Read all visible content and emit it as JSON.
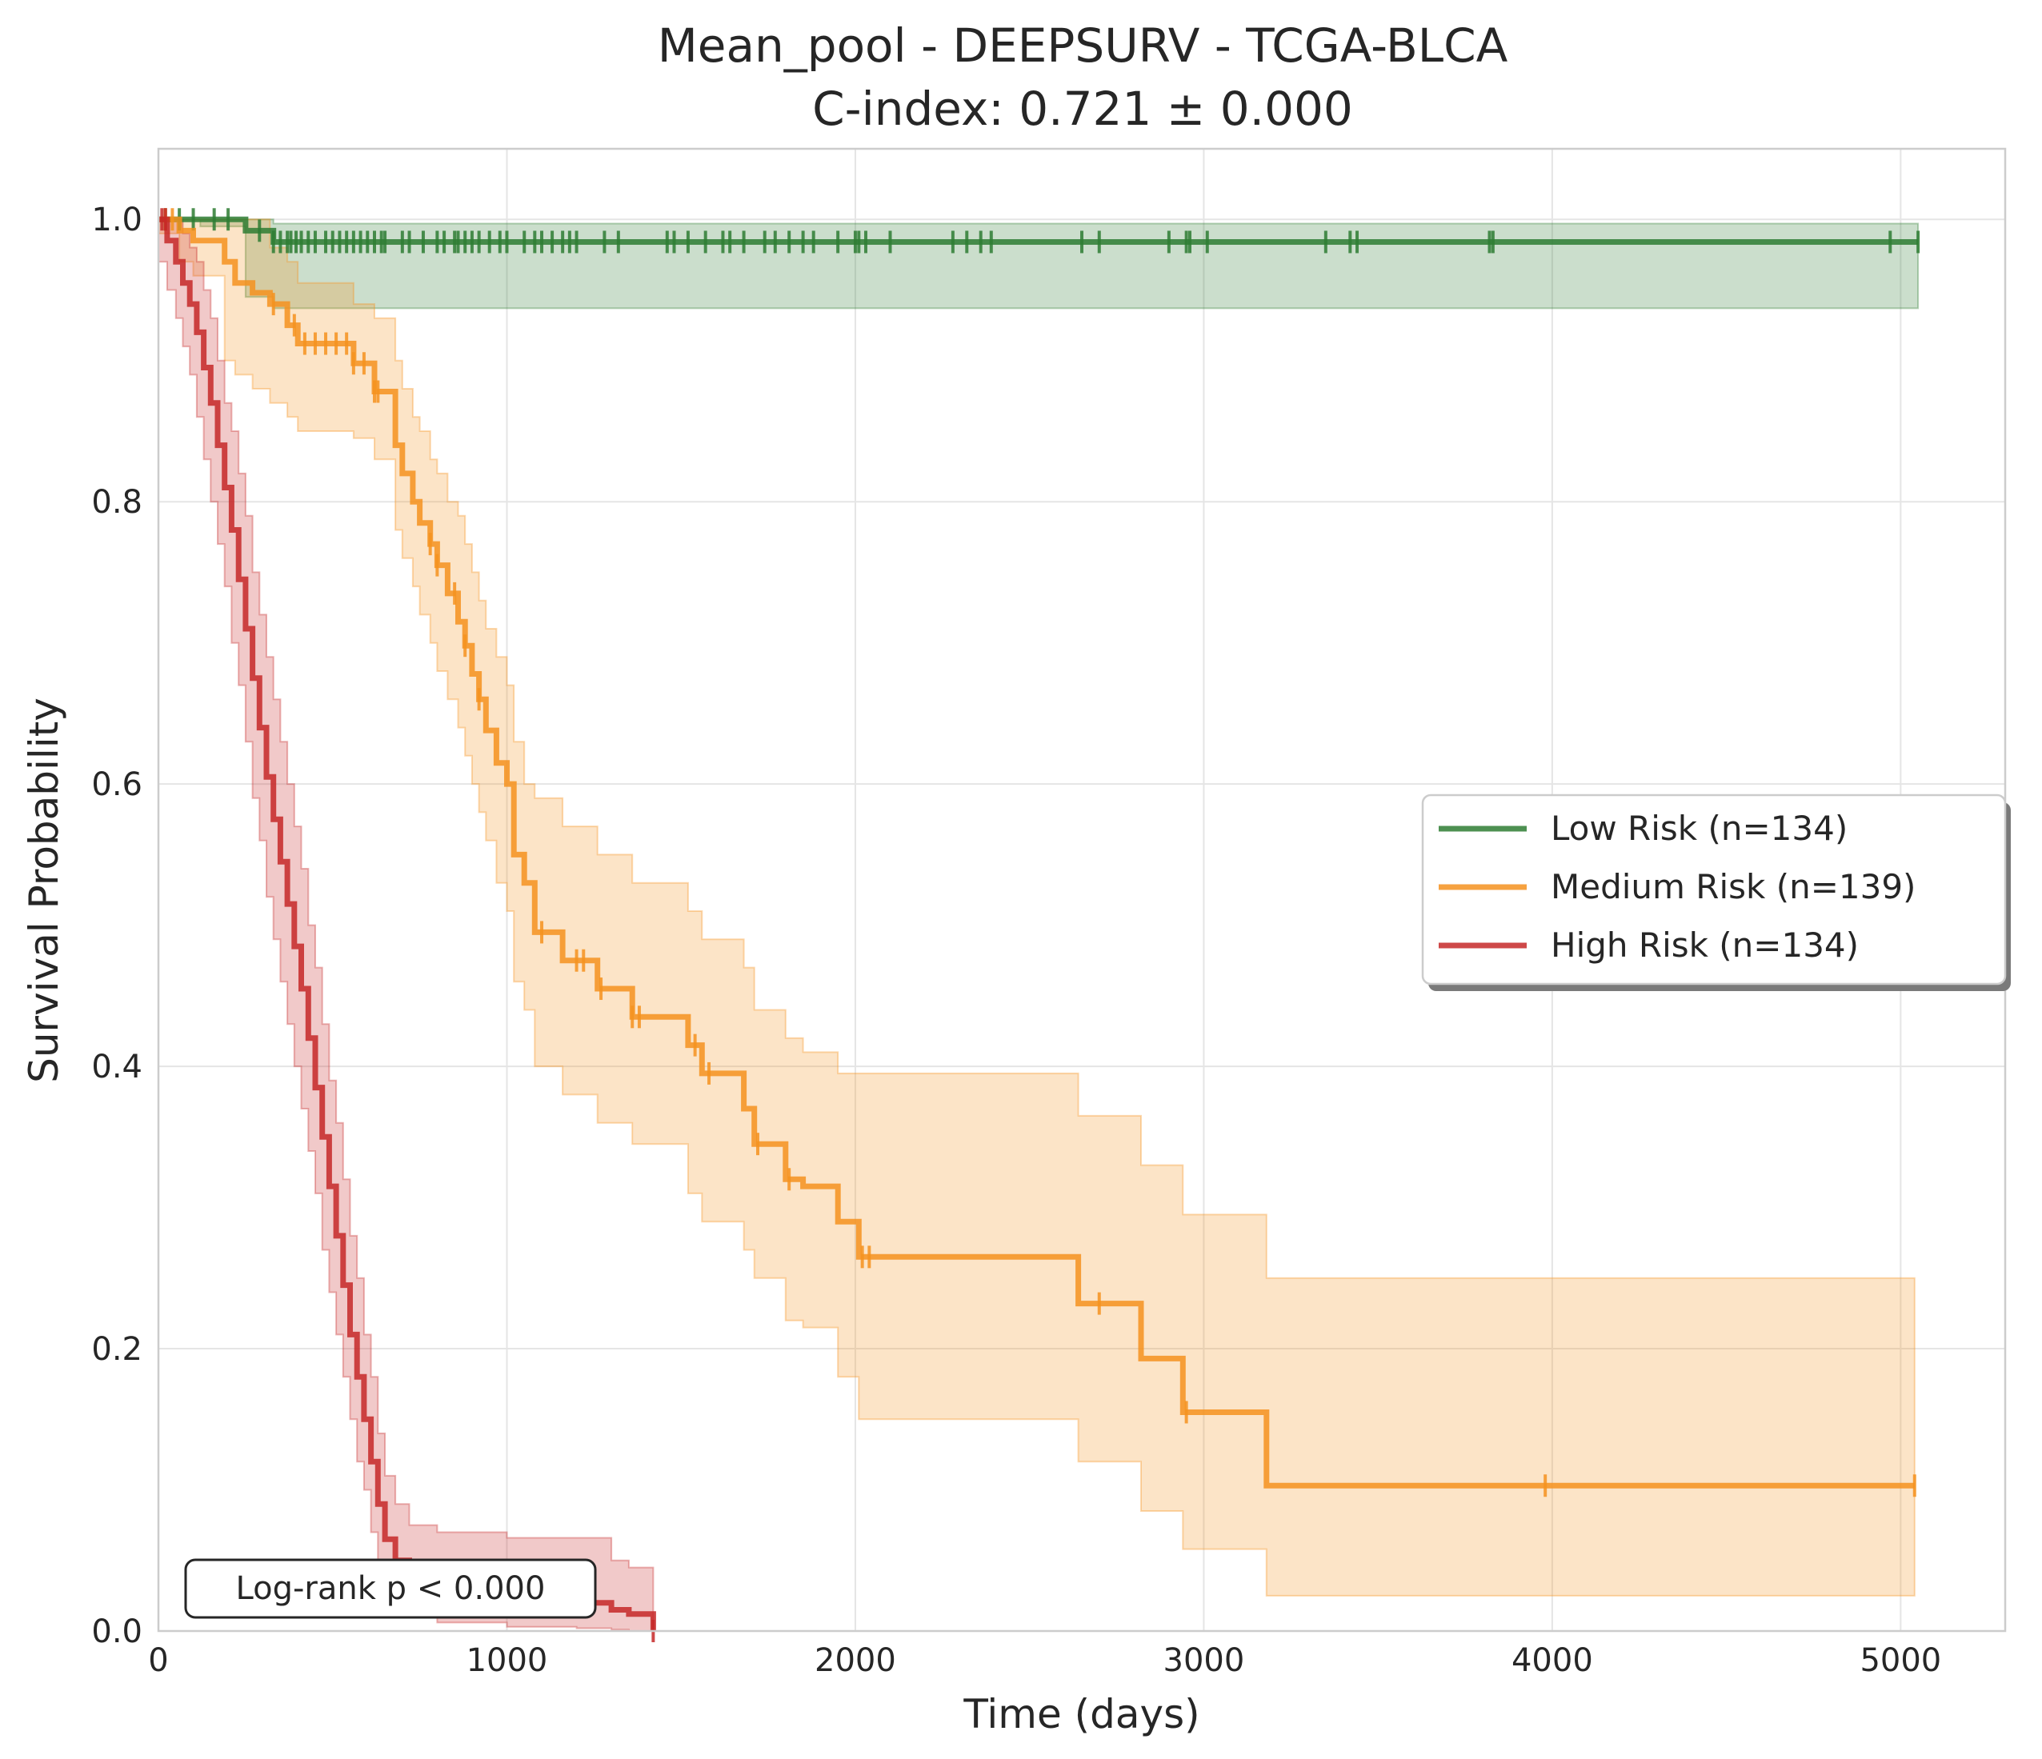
{
  "chart_data": {
    "type": "line",
    "subtype": "kaplan-meier",
    "title": "Mean_pool - DEEPSURV - TCGA-BLCA",
    "subtitle": "C-index: 0.721 ± 0.000",
    "xlabel": "Time (days)",
    "ylabel": "Survival Probability",
    "xlim": [
      0,
      5300
    ],
    "ylim": [
      0,
      1.05
    ],
    "xticks": [
      0,
      1000,
      2000,
      3000,
      4000,
      5000
    ],
    "xtick_labels": [
      "0",
      "1000",
      "2000",
      "3000",
      "4000",
      "5000"
    ],
    "yticks": [
      0,
      0.2,
      0.4,
      0.6,
      0.8,
      1.0
    ],
    "ytick_labels": [
      "0.0",
      "0.2",
      "0.4",
      "0.6",
      "0.8",
      "1.0"
    ],
    "grid": true,
    "legend_position": "center-right",
    "annotation": "Log-rank p < 0.000",
    "series": [
      {
        "name": "Low Risk (n=134)",
        "color": "#2e7d32",
        "x": [
          0,
          120,
          250,
          330,
          5050
        ],
        "y": [
          1.0,
          1.0,
          0.992,
          0.984,
          0.984
        ],
        "ci_lower": [
          1.0,
          0.995,
          0.945,
          0.937,
          0.937
        ],
        "ci_upper": [
          1.0,
          1.0,
          1.0,
          0.997,
          0.997
        ],
        "censors": [
          20,
          60,
          100,
          160,
          200,
          290,
          330,
          350,
          370,
          380,
          395,
          410,
          430,
          450,
          480,
          500,
          520,
          540,
          560,
          580,
          600,
          620,
          640,
          650,
          700,
          720,
          760,
          800,
          820,
          850,
          860,
          880,
          900,
          920,
          950,
          980,
          1000,
          1050,
          1080,
          1100,
          1130,
          1160,
          1180,
          1200,
          1280,
          1320,
          1460,
          1480,
          1520,
          1570,
          1620,
          1640,
          1680,
          1740,
          1770,
          1810,
          1850,
          1880,
          1950,
          2000,
          2010,
          2030,
          2100,
          2280,
          2320,
          2360,
          2390,
          2650,
          2700,
          2900,
          2950,
          2960,
          3010,
          3350,
          3420,
          3440,
          3820,
          3830,
          4970,
          5050
        ]
      },
      {
        "name": "Medium Risk (n=139)",
        "color": "#f5921e",
        "x": [
          0,
          60,
          100,
          190,
          220,
          270,
          320,
          370,
          400,
          560,
          620,
          680,
          700,
          730,
          750,
          780,
          800,
          830,
          860,
          880,
          900,
          920,
          940,
          970,
          1000,
          1020,
          1050,
          1080,
          1160,
          1260,
          1360,
          1520,
          1560,
          1680,
          1710,
          1800,
          1850,
          1950,
          2010,
          2640,
          2820,
          2940,
          3180,
          5040
        ],
        "y": [
          1.0,
          0.992,
          0.985,
          0.97,
          0.955,
          0.948,
          0.94,
          0.925,
          0.912,
          0.898,
          0.878,
          0.84,
          0.82,
          0.8,
          0.785,
          0.77,
          0.755,
          0.735,
          0.715,
          0.698,
          0.678,
          0.66,
          0.638,
          0.615,
          0.6,
          0.55,
          0.53,
          0.495,
          0.475,
          0.455,
          0.435,
          0.415,
          0.395,
          0.37,
          0.345,
          0.32,
          0.315,
          0.29,
          0.265,
          0.232,
          0.193,
          0.155,
          0.103,
          0.103
        ],
        "ci_lower": [
          0.99,
          0.97,
          0.96,
          0.9,
          0.89,
          0.88,
          0.87,
          0.86,
          0.85,
          0.845,
          0.83,
          0.78,
          0.76,
          0.74,
          0.72,
          0.7,
          0.68,
          0.66,
          0.64,
          0.62,
          0.6,
          0.58,
          0.56,
          0.53,
          0.51,
          0.46,
          0.44,
          0.4,
          0.38,
          0.36,
          0.345,
          0.31,
          0.29,
          0.27,
          0.25,
          0.22,
          0.215,
          0.18,
          0.15,
          0.12,
          0.085,
          0.058,
          0.025,
          0.025
        ],
        "ci_upper": [
          1.0,
          1.0,
          1.0,
          1.0,
          1.0,
          1.0,
          0.98,
          0.97,
          0.955,
          0.94,
          0.93,
          0.9,
          0.88,
          0.86,
          0.85,
          0.83,
          0.82,
          0.8,
          0.79,
          0.77,
          0.75,
          0.73,
          0.71,
          0.69,
          0.67,
          0.63,
          0.6,
          0.59,
          0.57,
          0.55,
          0.53,
          0.51,
          0.49,
          0.47,
          0.44,
          0.42,
          0.41,
          0.395,
          0.395,
          0.365,
          0.33,
          0.295,
          0.25,
          0.25
        ],
        "censors": [
          20,
          40,
          330,
          390,
          420,
          450,
          480,
          510,
          540,
          560,
          590,
          620,
          630,
          780,
          800,
          850,
          880,
          920,
          1100,
          1200,
          1220,
          1270,
          1360,
          1380,
          1540,
          1580,
          1720,
          1810,
          2020,
          2040,
          2700,
          2950,
          3980,
          5040
        ]
      },
      {
        "name": "High Risk (n=134)",
        "color": "#c62828",
        "x": [
          0,
          25,
          50,
          70,
          90,
          110,
          130,
          150,
          170,
          190,
          210,
          230,
          250,
          270,
          290,
          310,
          330,
          350,
          370,
          390,
          410,
          430,
          450,
          470,
          490,
          510,
          530,
          550,
          570,
          590,
          610,
          630,
          650,
          680,
          720,
          800,
          1000,
          1200,
          1300,
          1350,
          1420
        ],
        "y": [
          1.0,
          0.985,
          0.97,
          0.955,
          0.94,
          0.92,
          0.895,
          0.87,
          0.84,
          0.81,
          0.78,
          0.745,
          0.71,
          0.675,
          0.64,
          0.605,
          0.575,
          0.545,
          0.515,
          0.485,
          0.455,
          0.42,
          0.385,
          0.35,
          0.315,
          0.28,
          0.245,
          0.21,
          0.18,
          0.15,
          0.12,
          0.09,
          0.065,
          0.05,
          0.04,
          0.032,
          0.025,
          0.02,
          0.015,
          0.012,
          0.0
        ],
        "ci_lower": [
          0.97,
          0.95,
          0.93,
          0.91,
          0.89,
          0.86,
          0.83,
          0.8,
          0.77,
          0.74,
          0.7,
          0.67,
          0.63,
          0.59,
          0.56,
          0.52,
          0.49,
          0.46,
          0.43,
          0.4,
          0.37,
          0.34,
          0.31,
          0.27,
          0.24,
          0.21,
          0.18,
          0.15,
          0.12,
          0.1,
          0.07,
          0.05,
          0.03,
          0.02,
          0.012,
          0.006,
          0.003,
          0.002,
          0.001,
          0.0,
          0.0
        ],
        "ci_upper": [
          1.0,
          1.0,
          1.0,
          0.99,
          0.98,
          0.97,
          0.95,
          0.93,
          0.9,
          0.87,
          0.85,
          0.82,
          0.79,
          0.75,
          0.72,
          0.69,
          0.66,
          0.63,
          0.6,
          0.57,
          0.54,
          0.5,
          0.47,
          0.43,
          0.39,
          0.36,
          0.32,
          0.28,
          0.25,
          0.21,
          0.18,
          0.14,
          0.11,
          0.09,
          0.075,
          0.07,
          0.066,
          0.066,
          0.05,
          0.045,
          0.0
        ],
        "censors": [
          10,
          20,
          1420
        ]
      }
    ]
  }
}
